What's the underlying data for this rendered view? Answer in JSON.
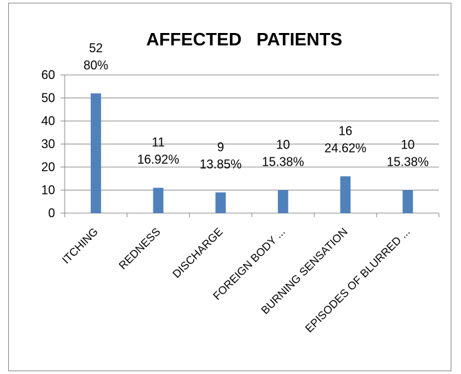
{
  "chart_data": {
    "type": "bar",
    "title": "AFFECTED   PATIENTS",
    "categories": [
      "ITCHING",
      "REDNESS",
      "DISCHARGE",
      "FOREIGN BODY ...",
      "BURNING SENSATION",
      "EPISODES OF BLURRED ..."
    ],
    "values": [
      52,
      11,
      9,
      10,
      16,
      10
    ],
    "percent_labels": [
      "80%",
      "16.92%",
      "13.85%",
      "15.38%",
      "24.62%",
      "15.38%"
    ],
    "ylim": [
      0,
      60
    ],
    "yticks": [
      0,
      10,
      20,
      30,
      40,
      50,
      60
    ],
    "grid": true,
    "legend": "none",
    "bar_color": "#4f81bd",
    "grid_color": "#8c8c8c"
  }
}
